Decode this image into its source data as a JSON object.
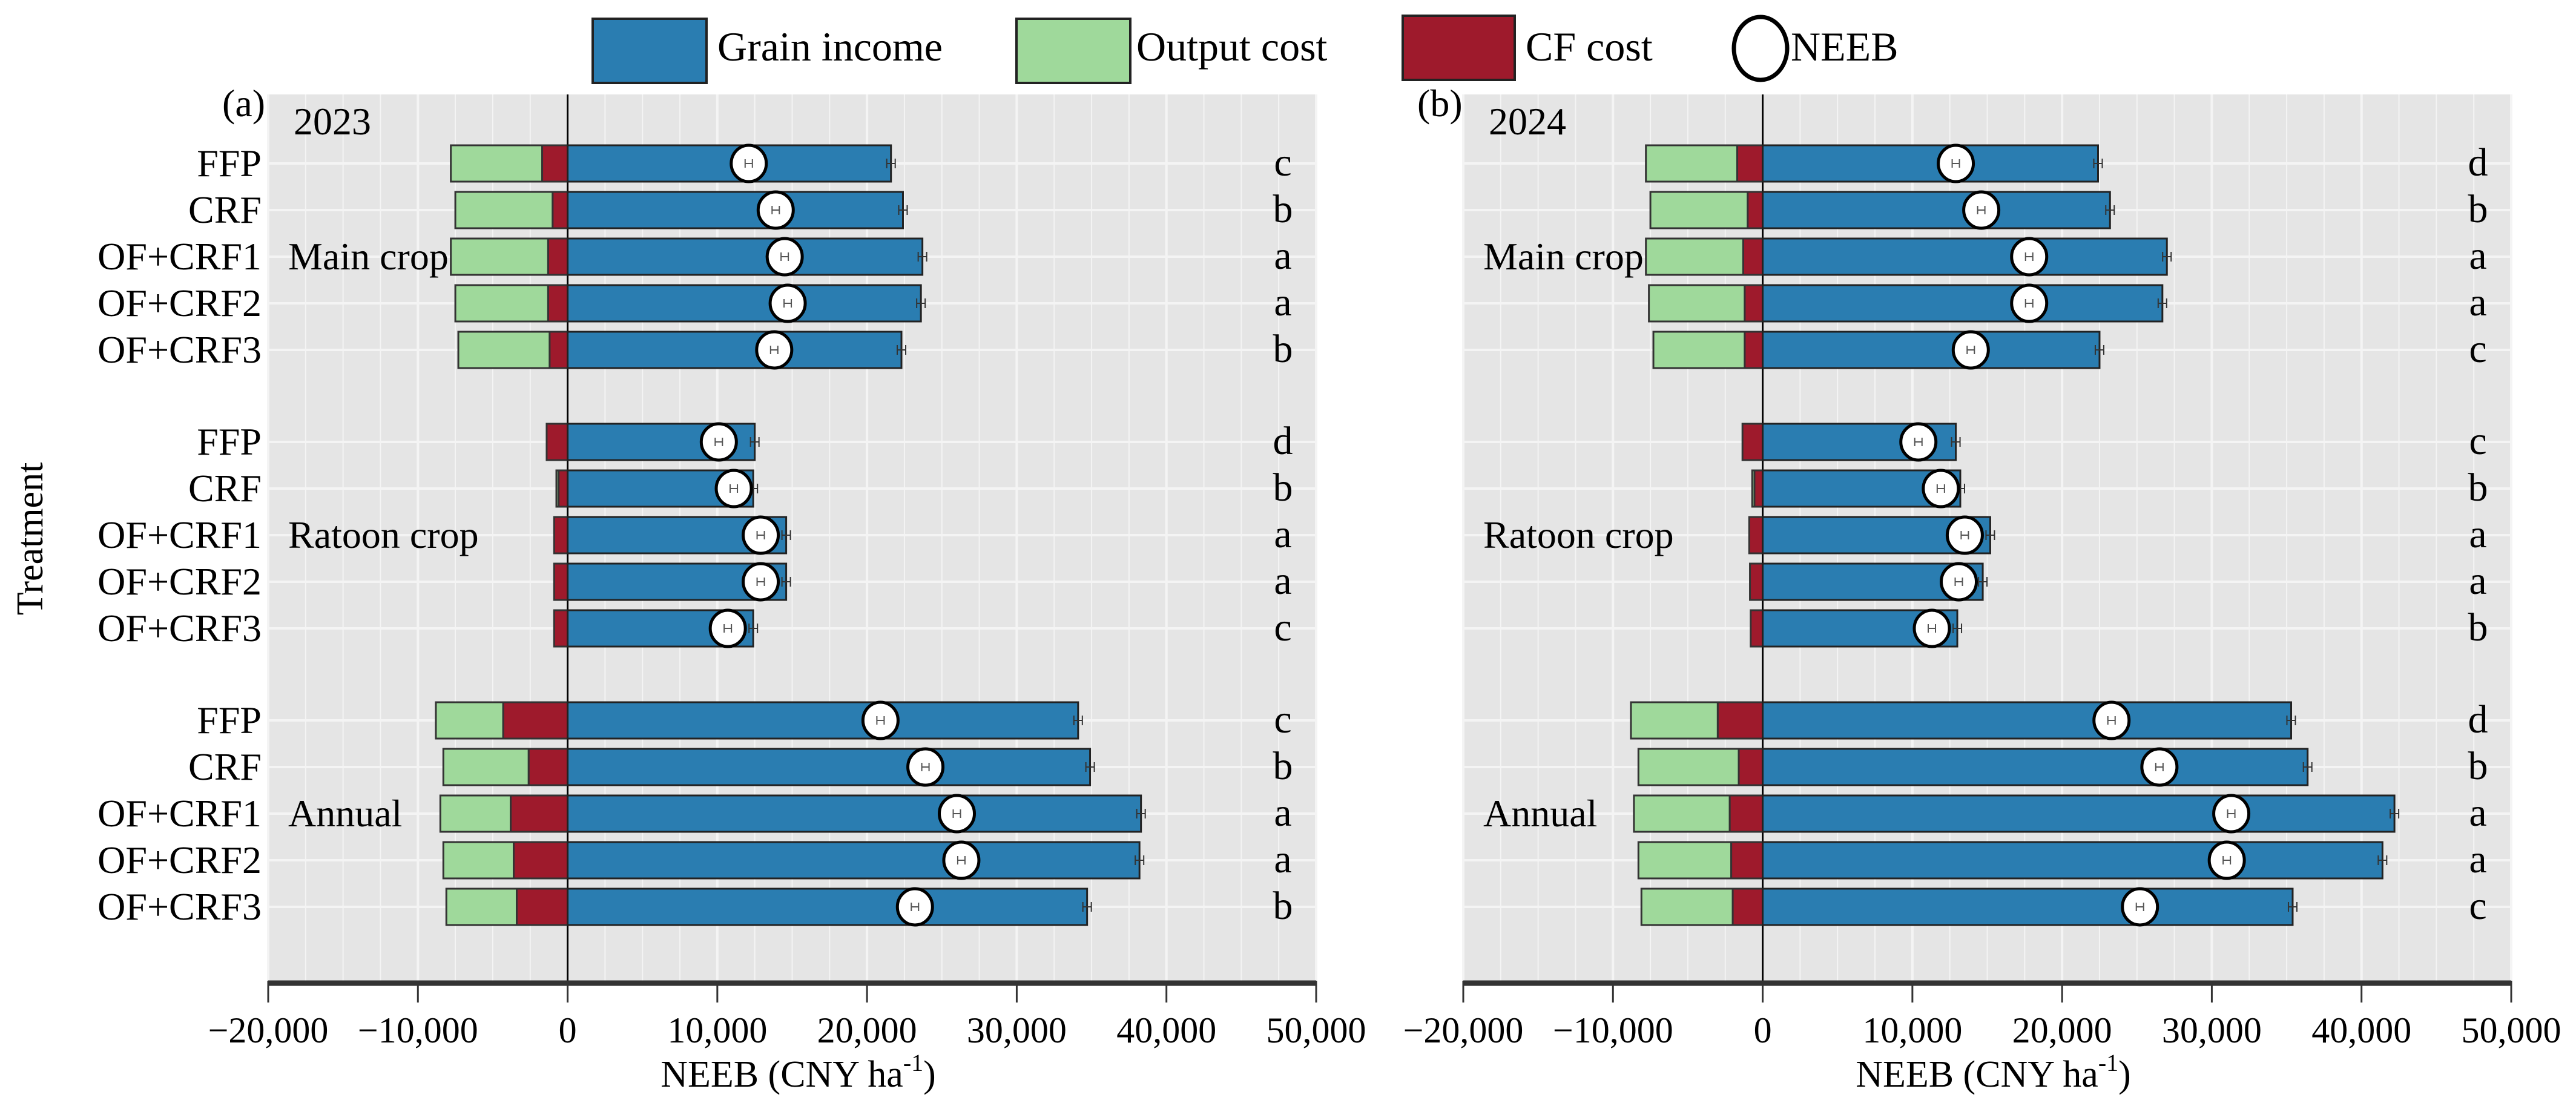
{
  "legend": {
    "grain_income": {
      "label": "Grain income",
      "color": "#2a7db1"
    },
    "output_cost": {
      "label": "Output cost",
      "color": "#9fd99b"
    },
    "cf_cost": {
      "label": "CF cost",
      "color": "#9e1a2c"
    },
    "neeb": {
      "label": "NEEB",
      "color": "#ffffff"
    }
  },
  "y_axis_title": "Treatment",
  "chart_data": [
    {
      "type": "bar",
      "orientation": "horizontal-stacked",
      "panel_label": "(a)",
      "year": "2023",
      "xlim": [
        -20000,
        50000
      ],
      "xticks": [
        {
          "value": -20000,
          "label": "−20,000"
        },
        {
          "value": -10000,
          "label": "−10,000"
        },
        {
          "value": 0,
          "label": "0"
        },
        {
          "value": 10000,
          "label": "10,000"
        },
        {
          "value": 20000,
          "label": "20,000"
        },
        {
          "value": 30000,
          "label": "30,000"
        },
        {
          "value": 40000,
          "label": "40,000"
        },
        {
          "value": 50000,
          "label": "50,000"
        }
      ],
      "xlabel": {
        "main": "NEEB (CNY ha",
        "sup": "-1",
        "end": ")"
      },
      "grid": true,
      "groups": [
        {
          "name": "Main crop",
          "rows": [
            {
              "treatment": "FFP",
              "grain_income": 21600,
              "output_cost": -6100,
              "cf_cost": -1700,
              "neeb": 12100,
              "letter": "c"
            },
            {
              "treatment": "CRF",
              "grain_income": 22400,
              "output_cost": -6500,
              "cf_cost": -1000,
              "neeb": 13900,
              "letter": "b"
            },
            {
              "treatment": "OF+CRF1",
              "grain_income": 23700,
              "output_cost": -6500,
              "cf_cost": -1300,
              "neeb": 14500,
              "letter": "a"
            },
            {
              "treatment": "OF+CRF2",
              "grain_income": 23600,
              "output_cost": -6200,
              "cf_cost": -1300,
              "neeb": 14700,
              "letter": "a"
            },
            {
              "treatment": "OF+CRF3",
              "grain_income": 22300,
              "output_cost": -6100,
              "cf_cost": -1200,
              "neeb": 13800,
              "letter": "b"
            }
          ]
        },
        {
          "name": "Ratoon crop",
          "rows": [
            {
              "treatment": "FFP",
              "grain_income": 12500,
              "output_cost": 0,
              "cf_cost": -1400,
              "neeb": 10100,
              "letter": "d"
            },
            {
              "treatment": "CRF",
              "grain_income": 12400,
              "output_cost": -150,
              "cf_cost": -600,
              "neeb": 11100,
              "letter": "b"
            },
            {
              "treatment": "OF+CRF1",
              "grain_income": 14600,
              "output_cost": 0,
              "cf_cost": -900,
              "neeb": 12900,
              "letter": "a"
            },
            {
              "treatment": "OF+CRF2",
              "grain_income": 14600,
              "output_cost": 0,
              "cf_cost": -900,
              "neeb": 12900,
              "letter": "a"
            },
            {
              "treatment": "OF+CRF3",
              "grain_income": 12400,
              "output_cost": 0,
              "cf_cost": -900,
              "neeb": 10700,
              "letter": "c"
            }
          ]
        },
        {
          "name": "Annual",
          "rows": [
            {
              "treatment": "FFP",
              "grain_income": 34100,
              "output_cost": -4500,
              "cf_cost": -4300,
              "neeb": 20900,
              "letter": "c"
            },
            {
              "treatment": "CRF",
              "grain_income": 34900,
              "output_cost": -5700,
              "cf_cost": -2600,
              "neeb": 23900,
              "letter": "b"
            },
            {
              "treatment": "OF+CRF1",
              "grain_income": 38300,
              "output_cost": -4700,
              "cf_cost": -3800,
              "neeb": 26000,
              "letter": "a"
            },
            {
              "treatment": "OF+CRF2",
              "grain_income": 38200,
              "output_cost": -4700,
              "cf_cost": -3600,
              "neeb": 26300,
              "letter": "a"
            },
            {
              "treatment": "OF+CRF3",
              "grain_income": 34700,
              "output_cost": -4700,
              "cf_cost": -3400,
              "neeb": 23200,
              "letter": "b"
            }
          ]
        }
      ]
    },
    {
      "type": "bar",
      "orientation": "horizontal-stacked",
      "panel_label": "(b)",
      "year": "2024",
      "xlim": [
        -20000,
        50000
      ],
      "xticks": [
        {
          "value": -20000,
          "label": "−20,000"
        },
        {
          "value": -10000,
          "label": "−10,000"
        },
        {
          "value": 0,
          "label": "0"
        },
        {
          "value": 10000,
          "label": "10,000"
        },
        {
          "value": 20000,
          "label": "20,000"
        },
        {
          "value": 30000,
          "label": "30,000"
        },
        {
          "value": 40000,
          "label": "40,000"
        },
        {
          "value": 50000,
          "label": "50,000"
        }
      ],
      "xlabel": {
        "main": "NEEB (CNY ha",
        "sup": "-1",
        "end": ")"
      },
      "grid": true,
      "groups": [
        {
          "name": "Main crop",
          "rows": [
            {
              "treatment": "FFP",
              "grain_income": 22400,
              "output_cost": -6100,
              "cf_cost": -1700,
              "neeb": 12900,
              "letter": "d"
            },
            {
              "treatment": "CRF",
              "grain_income": 23200,
              "output_cost": -6500,
              "cf_cost": -1000,
              "neeb": 14600,
              "letter": "b"
            },
            {
              "treatment": "OF+CRF1",
              "grain_income": 27000,
              "output_cost": -6500,
              "cf_cost": -1300,
              "neeb": 17800,
              "letter": "a"
            },
            {
              "treatment": "OF+CRF2",
              "grain_income": 26700,
              "output_cost": -6400,
              "cf_cost": -1200,
              "neeb": 17800,
              "letter": "a"
            },
            {
              "treatment": "OF+CRF3",
              "grain_income": 22500,
              "output_cost": -6100,
              "cf_cost": -1200,
              "neeb": 13900,
              "letter": "c"
            }
          ]
        },
        {
          "name": "Ratoon crop",
          "rows": [
            {
              "treatment": "FFP",
              "grain_income": 12900,
              "output_cost": 0,
              "cf_cost": -1350,
              "neeb": 10400,
              "letter": "c"
            },
            {
              "treatment": "CRF",
              "grain_income": 13200,
              "output_cost": -150,
              "cf_cost": -550,
              "neeb": 11900,
              "letter": "b"
            },
            {
              "treatment": "OF+CRF1",
              "grain_income": 15200,
              "output_cost": 0,
              "cf_cost": -900,
              "neeb": 13500,
              "letter": "a"
            },
            {
              "treatment": "OF+CRF2",
              "grain_income": 14700,
              "output_cost": 0,
              "cf_cost": -850,
              "neeb": 13100,
              "letter": "a"
            },
            {
              "treatment": "OF+CRF3",
              "grain_income": 13000,
              "output_cost": 0,
              "cf_cost": -800,
              "neeb": 11300,
              "letter": "b"
            }
          ]
        },
        {
          "name": "Annual",
          "rows": [
            {
              "treatment": "FFP",
              "grain_income": 35300,
              "output_cost": -5800,
              "cf_cost": -3000,
              "neeb": 23300,
              "letter": "d"
            },
            {
              "treatment": "CRF",
              "grain_income": 36400,
              "output_cost": -6700,
              "cf_cost": -1600,
              "neeb": 26500,
              "letter": "b"
            },
            {
              "treatment": "OF+CRF1",
              "grain_income": 42200,
              "output_cost": -6400,
              "cf_cost": -2200,
              "neeb": 31300,
              "letter": "a"
            },
            {
              "treatment": "OF+CRF2",
              "grain_income": 41400,
              "output_cost": -6200,
              "cf_cost": -2100,
              "neeb": 31000,
              "letter": "a"
            },
            {
              "treatment": "OF+CRF3",
              "grain_income": 35400,
              "output_cost": -6100,
              "cf_cost": -2000,
              "neeb": 25200,
              "letter": "c"
            }
          ]
        }
      ]
    }
  ]
}
